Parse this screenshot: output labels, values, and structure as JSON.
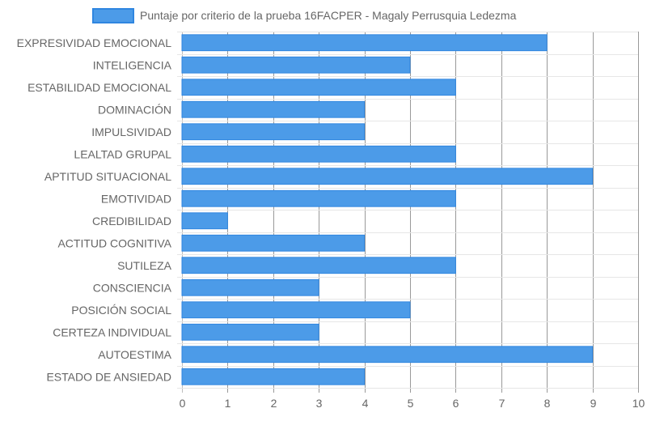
{
  "chart_data": {
    "type": "bar",
    "orientation": "horizontal",
    "categories": [
      "EXPRESIVIDAD EMOCIONAL",
      "INTELIGENCIA",
      "ESTABILIDAD EMOCIONAL",
      "DOMINACIÓN",
      "IMPULSIVIDAD",
      "LEALTAD GRUPAL",
      "APTITUD SITUACIONAL",
      "EMOTIVIDAD",
      "CREDIBILIDAD",
      "ACTITUD COGNITIVA",
      "SUTILEZA",
      "CONSCIENCIA",
      "POSICIÓN SOCIAL",
      "CERTEZA INDIVIDUAL",
      "AUTOESTIMA",
      "ESTADO DE ANSIEDAD"
    ],
    "series": [
      {
        "name": "Puntaje por criterio de la prueba 16FACPER - Magaly Perrusquia Ledezma",
        "values": [
          8,
          5,
          6,
          4,
          4,
          6,
          9,
          6,
          1,
          4,
          6,
          3,
          5,
          3,
          9,
          4
        ],
        "color": "#4c9be8",
        "border_color": "#2f86e0"
      }
    ],
    "xlim": [
      0,
      10
    ],
    "x_ticks": [
      "0",
      "1",
      "2",
      "3",
      "4",
      "5",
      "6",
      "7",
      "8",
      "9",
      "10"
    ],
    "grid": true,
    "legend_position": "top"
  }
}
